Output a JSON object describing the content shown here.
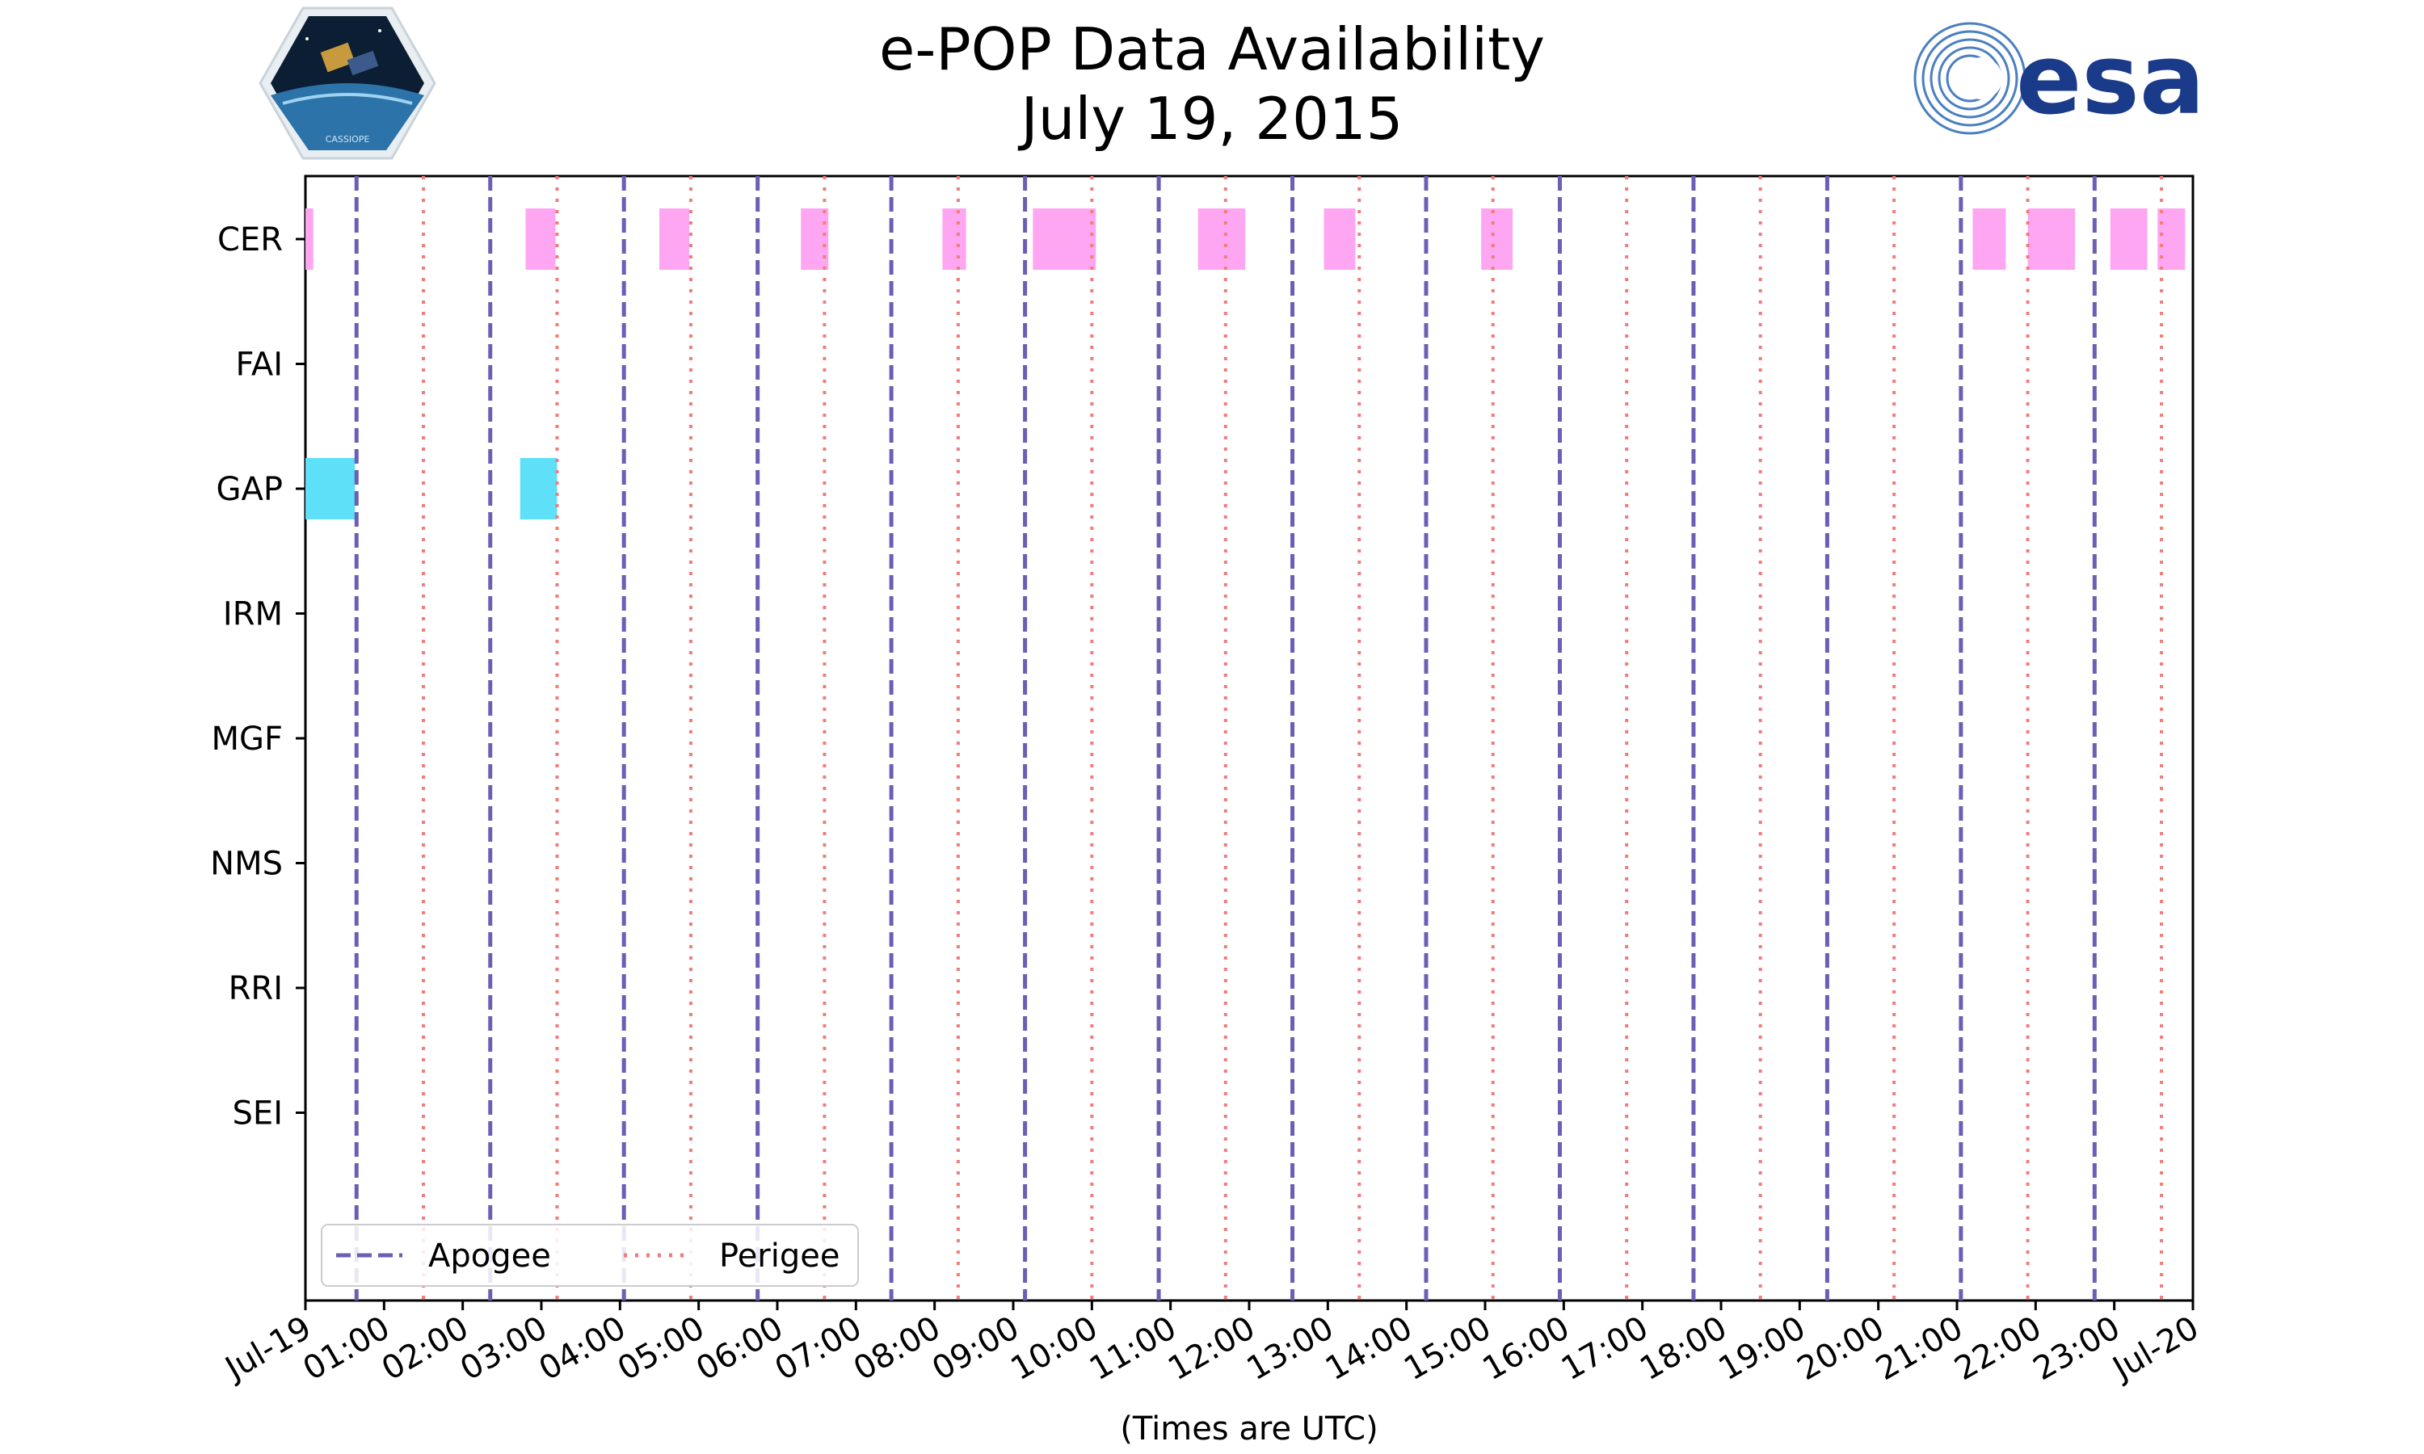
{
  "title_line1": "e-POP Data Availability",
  "title_line2": "July 19, 2015",
  "logos": {
    "left": "CASSIOPE",
    "right": "esa"
  },
  "colors": {
    "apogee": "#6a5fb4",
    "perigee": "#f07c7c",
    "CER": "#ffa6f2",
    "GAP": "#5ee0f8"
  },
  "chart_data": {
    "type": "timeline",
    "title": "e-POP Data Availability July 19, 2015",
    "xlabel": "(Times are UTC)",
    "xlim_hours": [
      0,
      24
    ],
    "x_tick_labels": [
      "Jul-19",
      "01:00",
      "02:00",
      "03:00",
      "04:00",
      "05:00",
      "06:00",
      "07:00",
      "08:00",
      "09:00",
      "10:00",
      "11:00",
      "12:00",
      "13:00",
      "14:00",
      "15:00",
      "16:00",
      "17:00",
      "18:00",
      "19:00",
      "20:00",
      "21:00",
      "22:00",
      "23:00",
      "Jul-20"
    ],
    "instruments": [
      "CER",
      "FAI",
      "GAP",
      "IRM",
      "MGF",
      "NMS",
      "RRI",
      "SEI"
    ],
    "apogee_hours": [
      0.65,
      2.35,
      4.05,
      5.75,
      7.45,
      9.15,
      10.85,
      12.55,
      14.25,
      15.95,
      17.65,
      19.35,
      21.05,
      22.75
    ],
    "perigee_hours": [
      1.5,
      3.2,
      4.9,
      6.6,
      8.3,
      10.0,
      11.7,
      13.4,
      15.1,
      16.8,
      18.5,
      20.2,
      21.9,
      23.6
    ],
    "availability": {
      "CER": [
        [
          0.0,
          0.1
        ],
        [
          2.8,
          3.18
        ],
        [
          4.5,
          4.88
        ],
        [
          6.3,
          6.65
        ],
        [
          8.1,
          8.4
        ],
        [
          9.25,
          10.05
        ],
        [
          11.35,
          11.95
        ],
        [
          12.95,
          13.35
        ],
        [
          14.95,
          15.35
        ],
        [
          21.2,
          21.62
        ],
        [
          21.9,
          22.5
        ],
        [
          22.95,
          23.42
        ],
        [
          23.55,
          23.9
        ]
      ],
      "FAI": [],
      "GAP": [
        [
          0.0,
          0.63
        ],
        [
          2.73,
          3.2
        ]
      ],
      "IRM": [],
      "MGF": [],
      "NMS": [],
      "RRI": [],
      "SEI": []
    },
    "legend": {
      "position": "lower-left",
      "entries": [
        "Apogee",
        "Perigee"
      ]
    }
  }
}
